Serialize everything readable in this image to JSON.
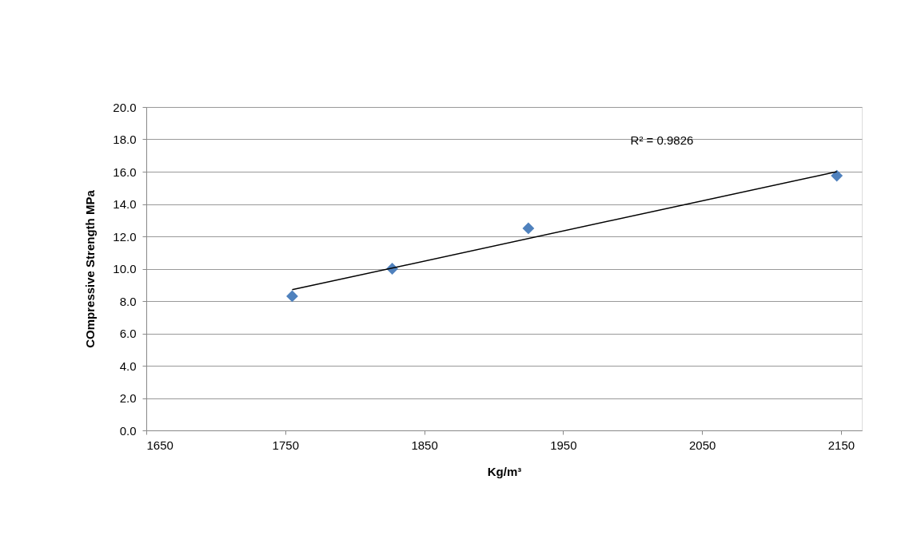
{
  "chart_data": {
    "type": "scatter",
    "xlabel": "Kg/m³",
    "ylabel": "COmpressive Strength MPa",
    "series": [
      {
        "type": "scatter",
        "color": "#4f81bd",
        "marker": "diamond",
        "x": [
          1755,
          1827,
          1925,
          2147
        ],
        "values": [
          8.3,
          10.0,
          12.5,
          15.75
        ]
      },
      {
        "type": "line",
        "color": "#000000",
        "marker": "none",
        "x": [
          1755,
          2147
        ],
        "values": [
          8.7,
          16.0
        ]
      }
    ],
    "annotations": [
      "R² = 0.9826"
    ],
    "xlim": [
      1650,
      2165
    ],
    "xticks": [
      1650,
      1750,
      1850,
      1950,
      2050,
      2150
    ],
    "ylim": [
      0,
      20
    ],
    "yticks": [
      {
        "value": 0,
        "label": "0.0"
      },
      {
        "value": 2,
        "label": "2.0"
      },
      {
        "value": 4,
        "label": "4.0"
      },
      {
        "value": 6,
        "label": "6.0"
      },
      {
        "value": 8,
        "label": "8.0"
      },
      {
        "value": 10,
        "label": "10.0"
      },
      {
        "value": 12,
        "label": "12.0"
      },
      {
        "value": 14,
        "label": "14.0"
      },
      {
        "value": 16,
        "label": "16.0"
      },
      {
        "value": 18,
        "label": "18.0"
      },
      {
        "value": 20,
        "label": "20.0"
      }
    ],
    "grid": "y"
  }
}
